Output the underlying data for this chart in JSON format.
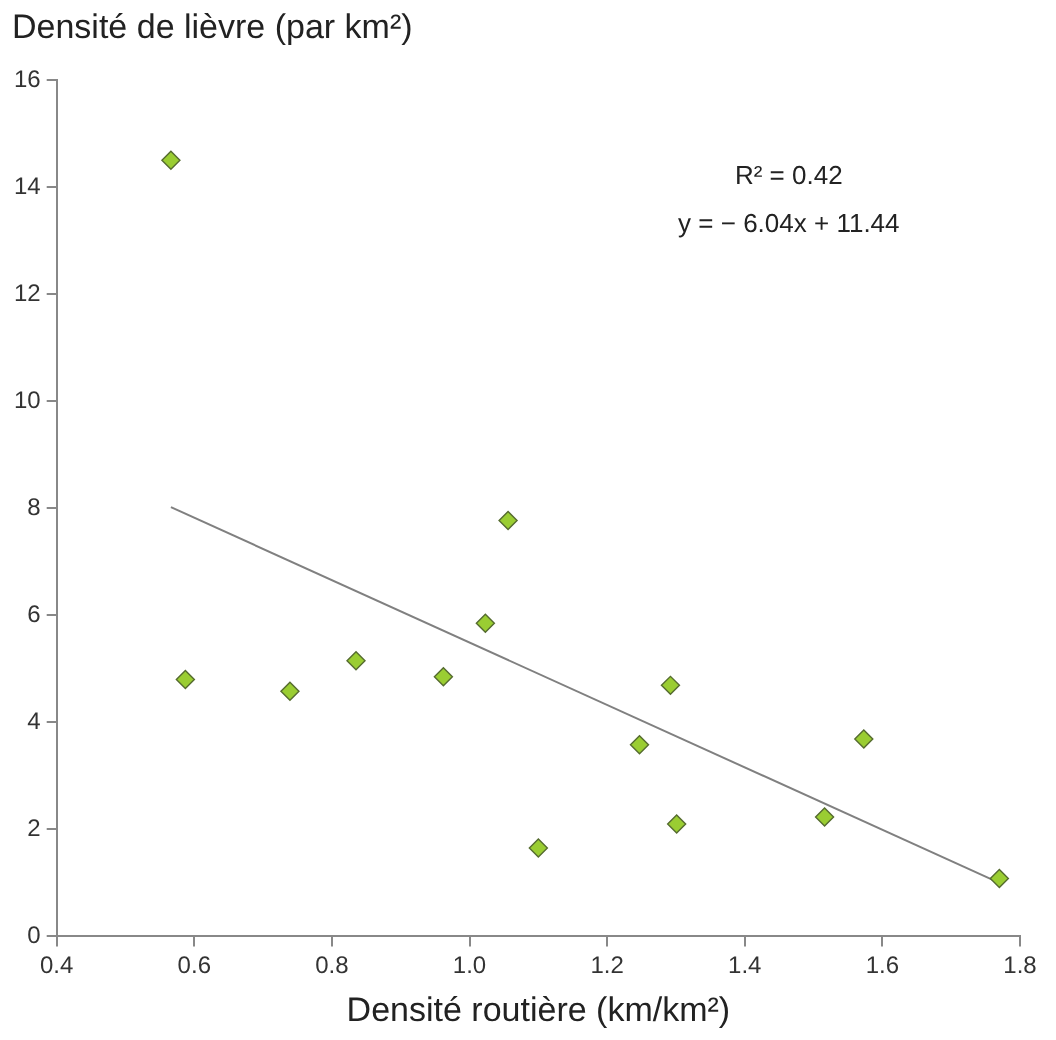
{
  "chart_data": {
    "type": "scatter",
    "ylabel": "Densité de lièvre (par km²)",
    "xlabel": "Densité routière (km/km²)",
    "xlim": [
      0.4,
      1.8
    ],
    "xticks": [
      0.4,
      0.6,
      0.8,
      {
        "value": 1,
        "label": "1.0"
      },
      1.2,
      1.4,
      1.6,
      1.8
    ],
    "ylim": [
      0,
      16
    ],
    "yticks": [
      0,
      2,
      4,
      6,
      8,
      10,
      12,
      14,
      16
    ],
    "grid": false,
    "legend": false,
    "annotations": [
      "R² = 0.42",
      "y = − 6.04x + 11.44"
    ],
    "series": [
      {
        "color": "#9acd32",
        "marker": "diamond",
        "x": [
          0.566,
          0.587,
          0.739,
          0.835,
          0.962,
          1.023,
          1.056,
          1.1,
          1.247,
          1.292,
          1.301,
          1.516,
          1.573,
          1.77
        ],
        "values": [
          14.5,
          4.8,
          4.58,
          5.15,
          4.85,
          5.85,
          7.77,
          1.65,
          3.58,
          4.69,
          2.1,
          2.23,
          3.69,
          1.08
        ]
      },
      {
        "type": "line",
        "color": "#808080",
        "marker": "none",
        "x": [
          0.566,
          1.77
        ],
        "values": [
          8.02,
          1.0
        ]
      }
    ]
  }
}
